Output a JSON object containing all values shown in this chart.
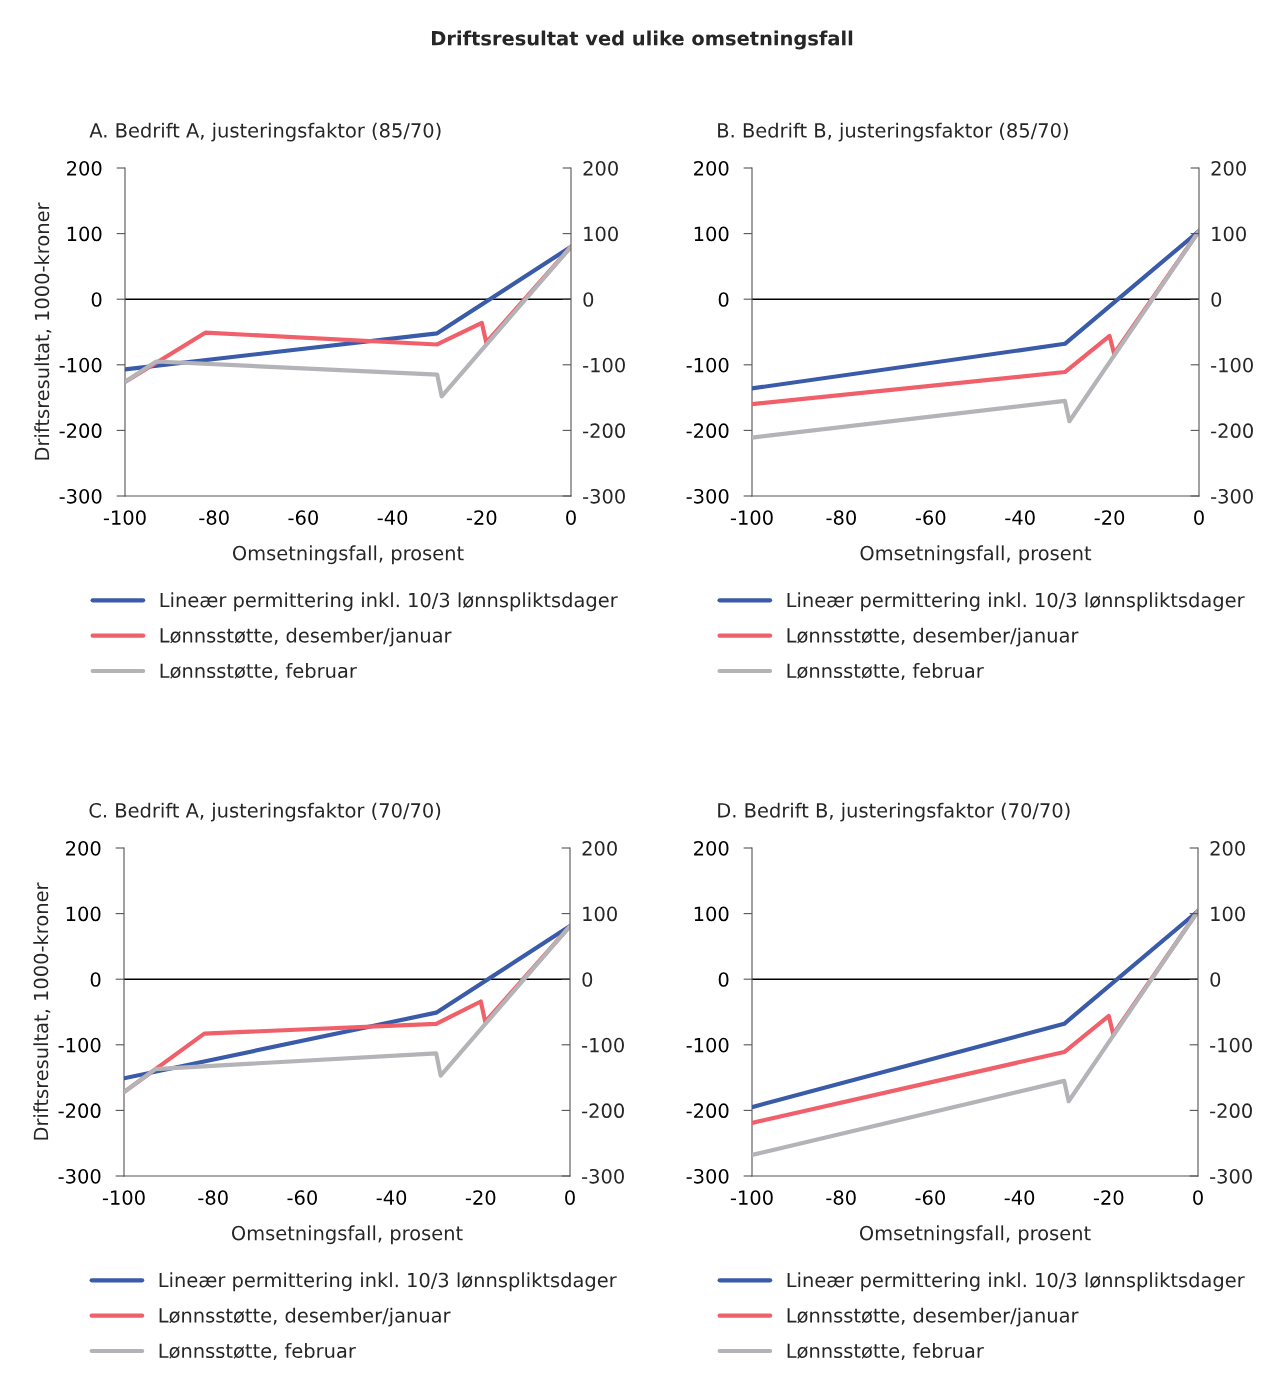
{
  "chart_data": [
    {
      "type": "line",
      "title": "A. Bedrift A, justeringsfaktor (85/70)",
      "xlabel": "Omsetningsfall, prosent",
      "ylabel": "Driftsresultat, 1000-kroner",
      "annotations": [
        "Driftsresultat ved ulike omsetningsfall"
      ],
      "xlim": [
        -100,
        0
      ],
      "xticks": [
        -100,
        -80,
        -60,
        -40,
        -20,
        0
      ],
      "ylim": [
        -300,
        200
      ],
      "yticks": [
        -300,
        -200,
        -100,
        0,
        100,
        200
      ],
      "y2lim": [
        -300,
        200
      ],
      "y2ticks": [
        -300,
        -200,
        -100,
        0,
        100,
        200
      ],
      "grid": false,
      "legend": "bottom",
      "line_style": "solid",
      "marker": "none",
      "ref_lines": [
        {
          "axis": "y",
          "value": 0,
          "color": "#000000"
        }
      ],
      "series": [
        {
          "name": "Lineær permittering inkl. 10/3 lønnspliktsdager",
          "color": "#3a5ba9",
          "x": [
            -100,
            -30,
            0
          ],
          "values": [
            -107,
            -52,
            80
          ]
        },
        {
          "name": "Lønnsstøtte, desember/januar",
          "color": "#f0606a",
          "x": [
            -100,
            -82,
            -30,
            -20,
            -19,
            0
          ],
          "values": [
            -126,
            -51,
            -69,
            -36,
            -66,
            80
          ]
        },
        {
          "name": "Lønnsstøtte, februar",
          "color": "#b3b3b8",
          "x": [
            -100,
            -93,
            -30,
            -29,
            0
          ],
          "values": [
            -126,
            -95,
            -115,
            -148,
            80
          ]
        }
      ]
    },
    {
      "type": "line",
      "title": "B. Bedrift B, justeringsfaktor (85/70)",
      "xlabel": "Omsetningsfall, prosent",
      "xlim": [
        -100,
        0
      ],
      "xticks": [
        -100,
        -80,
        -60,
        -40,
        -20,
        0
      ],
      "ylim": [
        -300,
        200
      ],
      "yticks": [
        -300,
        -200,
        -100,
        0,
        100,
        200
      ],
      "y2lim": [
        -300,
        200
      ],
      "y2ticks": [
        -300,
        -200,
        -100,
        0,
        100,
        200
      ],
      "grid": false,
      "legend": "bottom",
      "line_style": "solid",
      "marker": "none",
      "ref_lines": [
        {
          "axis": "y",
          "value": 0,
          "color": "#000000"
        }
      ],
      "series": [
        {
          "name": "Lineær permittering inkl. 10/3 lønnspliktsdager",
          "color": "#3a5ba9",
          "x": [
            -100,
            -30,
            0
          ],
          "values": [
            -136,
            -68,
            104
          ]
        },
        {
          "name": "Lønnsstøtte, desember/januar",
          "color": "#f0606a",
          "x": [
            -100,
            -30,
            -20,
            -19,
            0
          ],
          "values": [
            -160,
            -111,
            -56,
            -83,
            104
          ]
        },
        {
          "name": "Lønnsstøtte, februar",
          "color": "#b3b3b8",
          "x": [
            -100,
            -30,
            -29,
            0
          ],
          "values": [
            -211,
            -155,
            -186,
            104
          ]
        }
      ]
    },
    {
      "type": "line",
      "title": "C. Bedrift A, justeringsfaktor (70/70)",
      "xlabel": "Omsetningsfall, prosent",
      "ylabel": "Driftsresultat, 1000-kroner",
      "xlim": [
        -100,
        0
      ],
      "xticks": [
        -100,
        -80,
        -60,
        -40,
        -20,
        0
      ],
      "ylim": [
        -300,
        200
      ],
      "yticks": [
        -300,
        -200,
        -100,
        0,
        100,
        200
      ],
      "y2lim": [
        -300,
        200
      ],
      "y2ticks": [
        -300,
        -200,
        -100,
        0,
        100,
        200
      ],
      "grid": false,
      "legend": "bottom",
      "line_style": "solid",
      "marker": "none",
      "ref_lines": [
        {
          "axis": "y",
          "value": 0,
          "color": "#000000"
        }
      ],
      "series": [
        {
          "name": "Lineær permittering inkl. 10/3 lønnspliktsdager",
          "color": "#3a5ba9",
          "x": [
            -100,
            -30,
            0
          ],
          "values": [
            -151,
            -51,
            81
          ]
        },
        {
          "name": "Lønnsstøtte, desember/januar",
          "color": "#f0606a",
          "x": [
            -100,
            -82,
            -30,
            -20,
            -19,
            0
          ],
          "values": [
            -172,
            -83,
            -68,
            -34,
            -65,
            81
          ]
        },
        {
          "name": "Lønnsstøtte, februar",
          "color": "#b3b3b8",
          "x": [
            -100,
            -93,
            -30,
            -29,
            0
          ],
          "values": [
            -172,
            -137,
            -113,
            -147,
            81
          ]
        }
      ]
    },
    {
      "type": "line",
      "title": "D. Bedrift B, justeringsfaktor (70/70)",
      "xlabel": "Omsetningsfall, prosent",
      "xlim": [
        -100,
        0
      ],
      "xticks": [
        -100,
        -80,
        -60,
        -40,
        -20,
        0
      ],
      "ylim": [
        -300,
        200
      ],
      "yticks": [
        -300,
        -200,
        -100,
        0,
        100,
        200
      ],
      "y2lim": [
        -300,
        200
      ],
      "y2ticks": [
        -300,
        -200,
        -100,
        0,
        100,
        200
      ],
      "grid": false,
      "legend": "bottom",
      "line_style": "solid",
      "marker": "none",
      "ref_lines": [
        {
          "axis": "y",
          "value": 0,
          "color": "#000000"
        }
      ],
      "series": [
        {
          "name": "Lineær permittering inkl. 10/3 lønnspliktsdager",
          "color": "#3a5ba9",
          "x": [
            -100,
            -30,
            0
          ],
          "values": [
            -195,
            -68,
            104
          ]
        },
        {
          "name": "Lønnsstøtte, desember/januar",
          "color": "#f0606a",
          "x": [
            -100,
            -30,
            -20,
            -19,
            0
          ],
          "values": [
            -219,
            -111,
            -56,
            -84,
            104
          ]
        },
        {
          "name": "Lønnsstøtte, februar",
          "color": "#b3b3b8",
          "x": [
            -100,
            -30,
            -29,
            0
          ],
          "values": [
            -268,
            -155,
            -186,
            104
          ]
        }
      ]
    }
  ]
}
